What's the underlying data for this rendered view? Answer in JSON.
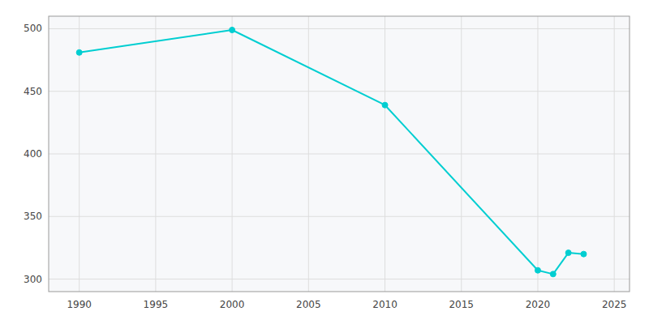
{
  "chart_data": {
    "type": "line",
    "x": [
      1990,
      2000,
      2010,
      2020,
      2021,
      2022,
      2023
    ],
    "values": [
      481,
      499,
      439,
      307,
      304,
      321,
      320
    ],
    "color": "#00CED1",
    "marker": "circle",
    "xlim": [
      1988,
      2026
    ],
    "ylim": [
      290,
      510
    ],
    "xticks": [
      1990,
      1995,
      2000,
      2005,
      2010,
      2015,
      2020,
      2025
    ],
    "yticks": [
      300,
      350,
      400,
      450,
      500
    ],
    "grid": true
  }
}
